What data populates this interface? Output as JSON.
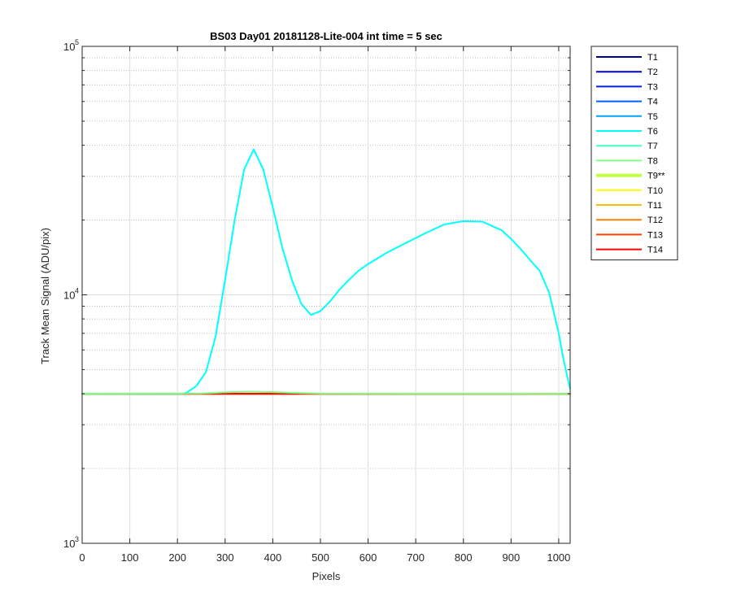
{
  "chart_data": {
    "type": "line",
    "title": "BS03 Day01 20181128-Lite-004 int time = 5 sec",
    "xlabel": "Pixels",
    "ylabel": "Track Mean Signal (ADU/pix)",
    "xlim": [
      0,
      1024
    ],
    "ylim": [
      1000,
      100000
    ],
    "yscale": "log",
    "xticks": [
      0,
      100,
      200,
      300,
      400,
      500,
      600,
      700,
      800,
      900,
      1000
    ],
    "yticks": [
      {
        "base": "10",
        "exp": "3",
        "value": 1000
      },
      {
        "base": "10",
        "exp": "4",
        "value": 10000
      },
      {
        "base": "10",
        "exp": "5",
        "value": 100000
      }
    ],
    "grid": true,
    "legend_position": "outside-right",
    "baseline": 4000,
    "series": [
      {
        "name": "T1",
        "color": "#00008F",
        "x": [
          0,
          1024
        ],
        "y": [
          4000,
          4000
        ]
      },
      {
        "name": "T2",
        "color": "#0000CF",
        "x": [
          0,
          1024
        ],
        "y": [
          4000,
          4000
        ]
      },
      {
        "name": "T3",
        "color": "#0020FF",
        "x": [
          0,
          1024
        ],
        "y": [
          4000,
          4000
        ]
      },
      {
        "name": "T4",
        "color": "#0060FF",
        "x": [
          0,
          1024
        ],
        "y": [
          4000,
          4000
        ]
      },
      {
        "name": "T5",
        "color": "#00A0FF",
        "x": [
          0,
          1024
        ],
        "y": [
          4000,
          4000
        ]
      },
      {
        "name": "T6",
        "color": "#00FFFF",
        "x": [
          0,
          210,
          220,
          240,
          260,
          280,
          300,
          320,
          340,
          360,
          380,
          400,
          420,
          440,
          460,
          480,
          500,
          520,
          540,
          560,
          580,
          600,
          640,
          680,
          720,
          760,
          800,
          840,
          880,
          900,
          920,
          940,
          960,
          980,
          1000,
          1010,
          1020,
          1024
        ],
        "y": [
          4000,
          4000,
          4050,
          4300,
          4900,
          6800,
          11500,
          20000,
          32000,
          38500,
          32000,
          22500,
          15500,
          11500,
          9200,
          8300,
          8600,
          9400,
          10500,
          11500,
          12500,
          13300,
          14800,
          16200,
          17700,
          19200,
          19800,
          19700,
          18200,
          16800,
          15300,
          13800,
          12500,
          10200,
          7000,
          5500,
          4500,
          4200
        ]
      },
      {
        "name": "T7",
        "color": "#40FFBF",
        "x": [
          0,
          1024
        ],
        "y": [
          4000,
          4000
        ]
      },
      {
        "name": "T8",
        "color": "#80FF80",
        "x": [
          0,
          250,
          300,
          350,
          400,
          450,
          500,
          1024
        ],
        "y": [
          4000,
          4010,
          4050,
          4080,
          4060,
          4030,
          4005,
          4000
        ]
      },
      {
        "name": "T9**",
        "color": "#BFFF40",
        "x": [
          0,
          1024
        ],
        "y": [
          4000,
          4000
        ]
      },
      {
        "name": "T10",
        "color": "#FFFF00",
        "x": [
          0,
          1024
        ],
        "y": [
          4000,
          4000
        ]
      },
      {
        "name": "T11",
        "color": "#FFBF00",
        "x": [
          0,
          1024
        ],
        "y": [
          4000,
          4000
        ]
      },
      {
        "name": "T12",
        "color": "#FF8000",
        "x": [
          0,
          1024
        ],
        "y": [
          4000,
          4000
        ]
      },
      {
        "name": "T13",
        "color": "#FF4000",
        "x": [
          0,
          1024
        ],
        "y": [
          4000,
          4000
        ]
      },
      {
        "name": "T14",
        "color": "#FF0000",
        "x": [
          0,
          1024
        ],
        "y": [
          4000,
          4000
        ]
      }
    ]
  }
}
